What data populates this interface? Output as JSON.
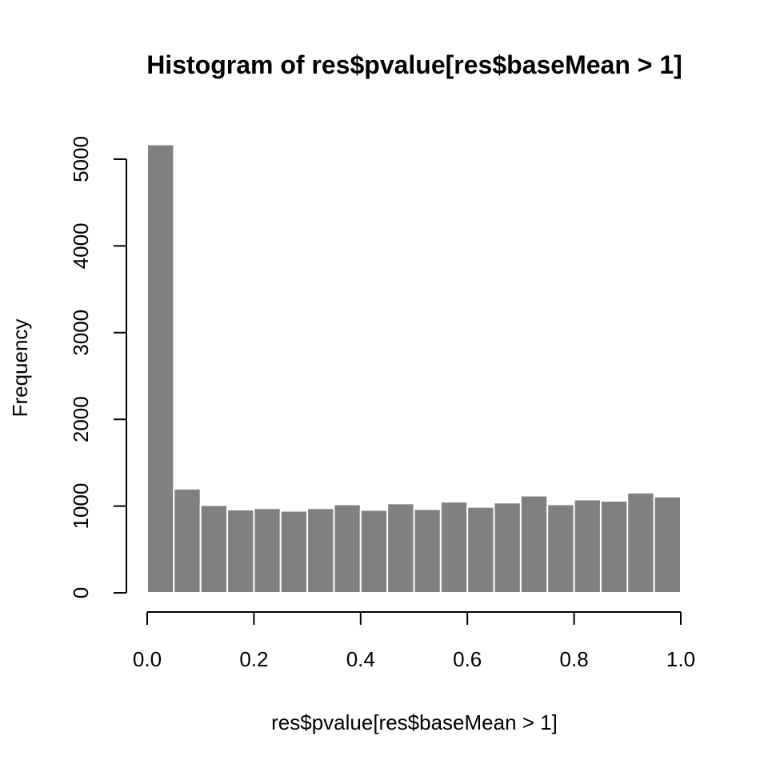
{
  "chart_data": {
    "type": "bar",
    "title": "Histogram of res$pvalue[res$baseMean > 1]",
    "xlabel": "res$pvalue[res$baseMean > 1]",
    "ylabel": "Frequency",
    "bin_width": 0.05,
    "bins": [
      {
        "x0": 0.0,
        "x1": 0.05,
        "value": 5170
      },
      {
        "x0": 0.05,
        "x1": 0.1,
        "value": 1200
      },
      {
        "x0": 0.1,
        "x1": 0.15,
        "value": 1010
      },
      {
        "x0": 0.15,
        "x1": 0.2,
        "value": 960
      },
      {
        "x0": 0.2,
        "x1": 0.25,
        "value": 975
      },
      {
        "x0": 0.25,
        "x1": 0.3,
        "value": 945
      },
      {
        "x0": 0.3,
        "x1": 0.35,
        "value": 975
      },
      {
        "x0": 0.35,
        "x1": 0.4,
        "value": 1020
      },
      {
        "x0": 0.4,
        "x1": 0.45,
        "value": 955
      },
      {
        "x0": 0.45,
        "x1": 0.5,
        "value": 1030
      },
      {
        "x0": 0.5,
        "x1": 0.55,
        "value": 965
      },
      {
        "x0": 0.55,
        "x1": 0.6,
        "value": 1050
      },
      {
        "x0": 0.6,
        "x1": 0.65,
        "value": 990
      },
      {
        "x0": 0.65,
        "x1": 0.7,
        "value": 1040
      },
      {
        "x0": 0.7,
        "x1": 0.75,
        "value": 1120
      },
      {
        "x0": 0.75,
        "x1": 0.8,
        "value": 1020
      },
      {
        "x0": 0.8,
        "x1": 0.85,
        "value": 1075
      },
      {
        "x0": 0.85,
        "x1": 0.9,
        "value": 1060
      },
      {
        "x0": 0.9,
        "x1": 0.95,
        "value": 1155
      },
      {
        "x0": 0.95,
        "x1": 1.0,
        "value": 1110
      }
    ],
    "xlim": [
      0,
      1
    ],
    "ylim": [
      0,
      5170
    ],
    "x_ticks": [
      0.0,
      0.2,
      0.4,
      0.6,
      0.8,
      1.0
    ],
    "x_tick_labels": [
      "0.0",
      "0.2",
      "0.4",
      "0.6",
      "0.8",
      "1.0"
    ],
    "y_ticks": [
      0,
      1000,
      2000,
      3000,
      4000,
      5000
    ],
    "y_tick_labels": [
      "0",
      "1000",
      "2000",
      "3000",
      "4000",
      "5000"
    ],
    "bar_color": "#808080",
    "bar_border_color": "#ffffff",
    "grid": false
  }
}
